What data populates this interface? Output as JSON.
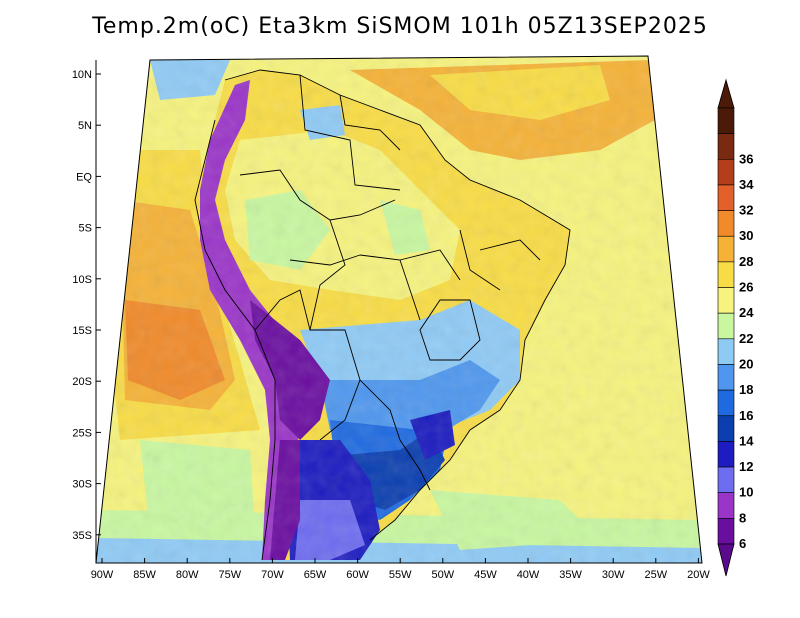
{
  "title": "Temp.2m(oC) Eta3km SiSMOM 101h 05Z13SEP2025",
  "lat_labels": [
    "10N",
    "5N",
    "EQ",
    "5S",
    "10S",
    "15S",
    "20S",
    "25S",
    "30S",
    "35S"
  ],
  "lon_labels": [
    "90W",
    "85W",
    "80W",
    "75W",
    "70W",
    "65W",
    "60W",
    "55W",
    "50W",
    "45W",
    "40W",
    "35W",
    "30W",
    "25W",
    "20W"
  ],
  "colorbar": {
    "labels": [
      "6",
      "8",
      "10",
      "12",
      "14",
      "16",
      "18",
      "20",
      "22",
      "24",
      "26",
      "28",
      "30",
      "32",
      "34",
      "36"
    ],
    "colors": [
      "#6a0ea0",
      "#9a35c8",
      "#6e6cf0",
      "#1c1cc0",
      "#0b3fb0",
      "#1f6ae0",
      "#4f97ee",
      "#8fcaf5",
      "#c8f7a0",
      "#f6f37e",
      "#f8dc45",
      "#f5b237",
      "#f08a2a",
      "#e4602a",
      "#b43d1c",
      "#7a2a10",
      "#4c1a08"
    ],
    "under_color": "#5a0a8a",
    "over_color": "#4c1a08"
  },
  "legend_units": "oC"
}
